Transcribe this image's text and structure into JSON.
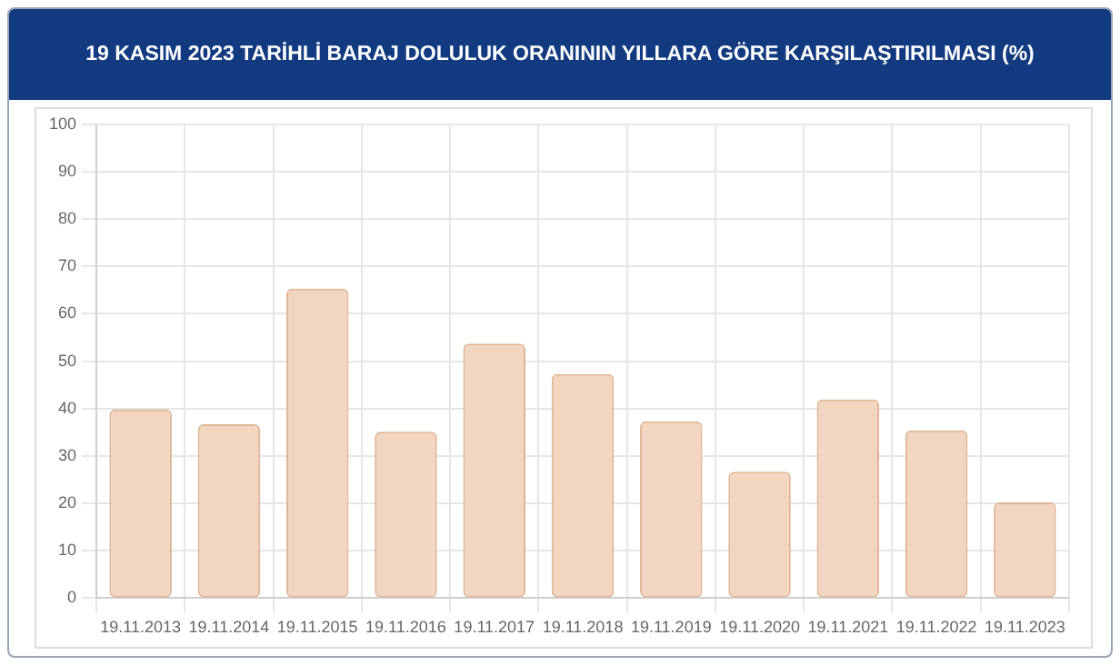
{
  "chart_data": {
    "type": "bar",
    "title": "19 KASIM 2023 TARİHLİ BARAJ DOLULUK ORANININ YILLARA GÖRE KARŞILAŞTIRILMASI (%)",
    "categories": [
      "19.11.2013",
      "19.11.2014",
      "19.11.2015",
      "19.11.2016",
      "19.11.2017",
      "19.11.2018",
      "19.11.2019",
      "19.11.2020",
      "19.11.2021",
      "19.11.2022",
      "19.11.2023"
    ],
    "values": [
      39.8,
      36.7,
      65.3,
      35.1,
      53.7,
      47.3,
      37.3,
      26.7,
      41.9,
      35.4,
      20.2
    ],
    "color": "#f3d6c1",
    "ylim": [
      0,
      100
    ],
    "yticks": [
      0,
      10,
      20,
      30,
      40,
      50,
      60,
      70,
      80,
      90,
      100
    ],
    "grid": true,
    "legend": false
  }
}
